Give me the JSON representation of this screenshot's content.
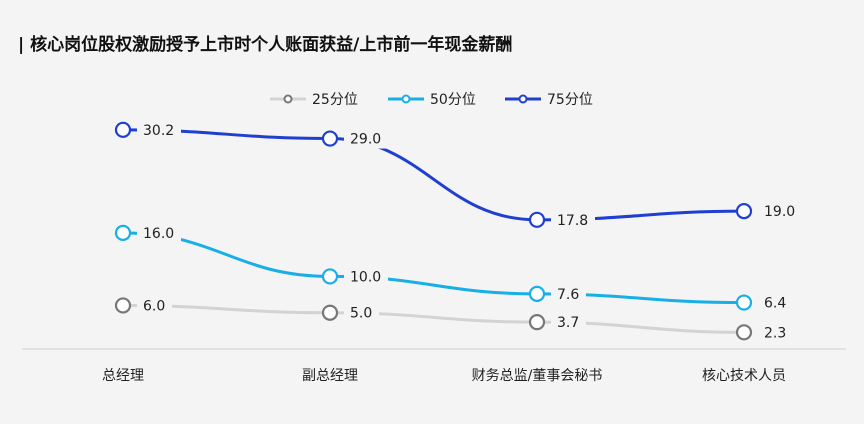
{
  "chart_data": {
    "type": "line",
    "title": "| 核心岗位股权激励授予上市时个人账面获益/上市前一年现金薪酬",
    "categories": [
      "总经理",
      "副总经理",
      "财务总监/董事会秘书",
      "核心技术人员"
    ],
    "series": [
      {
        "name": "25分位",
        "color": "#d3d3d3",
        "marker": "#777777",
        "values": [
          6.0,
          5.0,
          3.7,
          2.3
        ]
      },
      {
        "name": "50分位",
        "color": "#18aee6",
        "marker": "#18aee6",
        "values": [
          16.0,
          10.0,
          7.6,
          6.4
        ]
      },
      {
        "name": "75分位",
        "color": "#1f3fd0",
        "marker": "#1f3fd0",
        "values": [
          30.2,
          29.0,
          17.8,
          19.0
        ]
      }
    ],
    "value_labels": [
      [
        "6.0",
        "5.0",
        "3.7",
        "2.3"
      ],
      [
        "16.0",
        "10.0",
        "7.6",
        "6.4"
      ],
      [
        "30.2",
        "29.0",
        "17.8",
        "19.0"
      ]
    ],
    "legend_position": "top-center",
    "ylim": [
      0,
      35
    ],
    "grid": false,
    "smooth": true
  }
}
